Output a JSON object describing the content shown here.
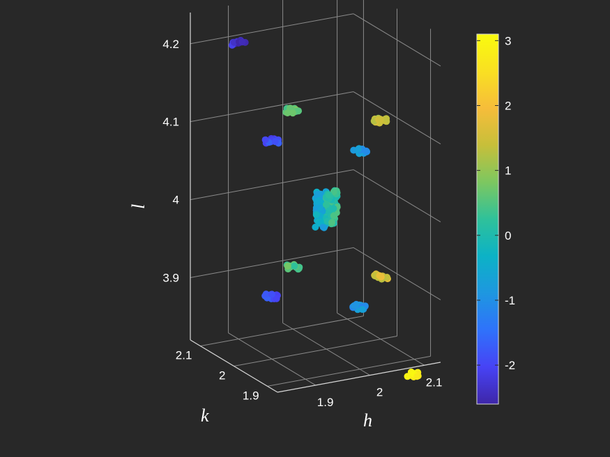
{
  "chart_data": {
    "type": "scatter",
    "view": "3d",
    "axes": {
      "x": {
        "label": "h",
        "ticks": [
          "1.9",
          "2",
          "2.1"
        ],
        "tick_values": [
          1.9,
          2.0,
          2.1
        ],
        "lim": [
          1.83,
          2.13
        ]
      },
      "y": {
        "label": "k",
        "ticks": [
          "1.9",
          "2",
          "2.1"
        ],
        "tick_values": [
          1.9,
          2.0,
          2.1
        ],
        "lim": [
          1.87,
          2.13
        ]
      },
      "z": {
        "label": "l",
        "ticks": [
          "3.9",
          "4",
          "4.1",
          "4.2"
        ],
        "tick_values": [
          3.9,
          4.0,
          4.1,
          4.2
        ],
        "lim": [
          3.82,
          4.24
        ]
      }
    },
    "grid": true,
    "colorbar": {
      "ticks": [
        "3",
        "2",
        "1",
        "0",
        "-1",
        "-2"
      ],
      "tick_values": [
        3,
        2,
        1,
        0,
        -1,
        -2
      ],
      "range": [
        -2.6,
        3.1
      ],
      "colormap": [
        "#3e26a8",
        "#4743f5",
        "#2f72fb",
        "#1e97e0",
        "#0cb2c6",
        "#2fc19a",
        "#7dc760",
        "#c7bf3a",
        "#f6bd3a",
        "#f9e022",
        "#f9fb0e"
      ]
    },
    "clusters": [
      {
        "h": 1.9,
        "k": 2.1,
        "l": 4.2,
        "value": -2.4
      },
      {
        "h": 1.9,
        "k": 2.0,
        "l": 4.1,
        "value": -1.9
      },
      {
        "h": 1.9,
        "k": 2.0,
        "l": 3.9,
        "value": -1.8
      },
      {
        "h": 2.0,
        "k": 2.1,
        "l": 4.1,
        "value": 0.6
      },
      {
        "h": 2.0,
        "k": 1.9,
        "l": 4.1,
        "value": -0.8
      },
      {
        "h": 2.1,
        "k": 2.0,
        "l": 4.1,
        "value": 1.4
      },
      {
        "h": 2.0,
        "k": 2.1,
        "l": 3.9,
        "value": 0.5
      },
      {
        "h": 2.0,
        "k": 1.9,
        "l": 3.9,
        "value": -0.9
      },
      {
        "h": 2.1,
        "k": 2.0,
        "l": 3.9,
        "value": 1.6
      },
      {
        "h": 2.1,
        "k": 1.9,
        "l": 3.8,
        "value": 3.0
      },
      {
        "h": 1.99,
        "k": 2.0,
        "l": 4.0,
        "value": -0.5
      },
      {
        "h": 2.01,
        "k": 2.0,
        "l": 4.0,
        "value": 0.2
      }
    ]
  }
}
